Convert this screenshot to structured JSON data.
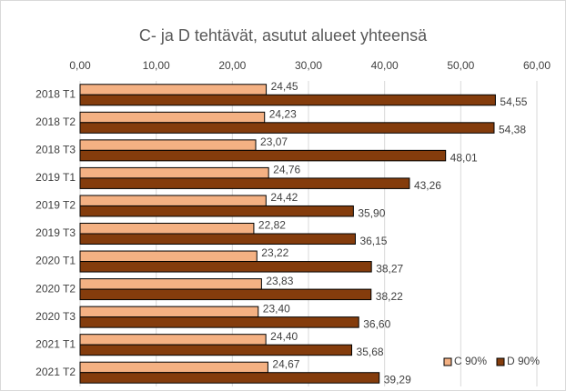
{
  "chart_data": {
    "type": "bar",
    "orientation": "horizontal",
    "title": "C- ja D tehtävät, asutut alueet  yhteensä",
    "categories": [
      "2018 T1",
      "2018 T2",
      "2018 T3",
      "2019 T1",
      "2019 T2",
      "2019 T3",
      "2020 T1",
      "2020 T2",
      "2020 T3",
      "2021 T1",
      "2021 T2"
    ],
    "series": [
      {
        "name": "C 90%",
        "color": "#f4b183",
        "values": [
          24.45,
          24.23,
          23.07,
          24.76,
          24.42,
          22.82,
          23.22,
          23.83,
          23.4,
          24.4,
          24.67
        ],
        "value_labels": [
          "24,45",
          "24,23",
          "23,07",
          "24,76",
          "24,42",
          "22,82",
          "23,22",
          "23,83",
          "23,40",
          "24,40",
          "24,67"
        ]
      },
      {
        "name": "D 90%",
        "color": "#843c0c",
        "values": [
          54.55,
          54.38,
          48.01,
          43.26,
          35.9,
          36.15,
          38.27,
          38.22,
          36.6,
          35.68,
          39.29
        ],
        "value_labels": [
          "54,55",
          "54,38",
          "48,01",
          "43,26",
          "35,90",
          "36,15",
          "38,27",
          "38,22",
          "36,60",
          "35,68",
          "39,29"
        ]
      }
    ],
    "xlim": [
      0,
      60
    ],
    "xticks": [
      {
        "value": 0,
        "label": "0,00"
      },
      {
        "value": 10,
        "label": "10,00"
      },
      {
        "value": 20,
        "label": "20,00"
      },
      {
        "value": 30,
        "label": "30,00"
      },
      {
        "value": 40,
        "label": "40,00"
      },
      {
        "value": 50,
        "label": "50,00"
      },
      {
        "value": 60,
        "label": "60,00"
      }
    ],
    "grid": true,
    "legend": "lower right"
  }
}
